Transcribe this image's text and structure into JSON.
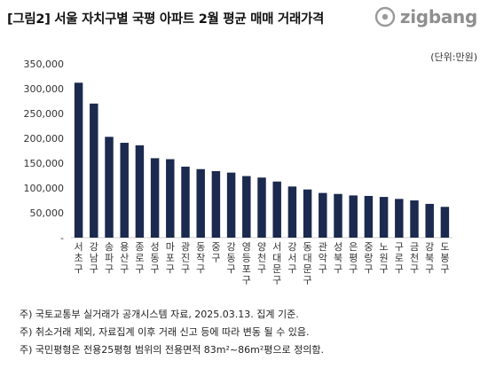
{
  "header": {
    "title": "[그림2] 서울 자치구별 국평 아파트 2월 평균 매매 거래가격",
    "brand": "zigbang",
    "brand_color": "#8f8f8f"
  },
  "unit": "(단위:만원)",
  "notes": [
    "주) 국토교통부 실거래가 공개시스템 자료, 2025.03.13. 집계 기준.",
    "주) 취소거래 제외, 자료집계 이후 거래 신고 등에 따라 변동 될 수 있음.",
    "주) 국민평형은 전용25평형 범위의 전용면적 83m²~86m²평으로 정의함."
  ],
  "chart_data": {
    "type": "bar",
    "categories": [
      "서초구",
      "강남구",
      "송파구",
      "용산구",
      "종로구",
      "성동구",
      "마포구",
      "광진구",
      "동작구",
      "중구",
      "강동구",
      "영등포구",
      "양천구",
      "서대문구",
      "강서구",
      "동대문구",
      "관악구",
      "성북구",
      "은평구",
      "중랑구",
      "노원구",
      "구로구",
      "금천구",
      "강북구",
      "도봉구"
    ],
    "values": [
      312000,
      270000,
      203000,
      191000,
      186000,
      160000,
      158000,
      143000,
      138000,
      134000,
      131000,
      124000,
      121000,
      113000,
      103000,
      97000,
      90000,
      88000,
      85000,
      84000,
      82000,
      78000,
      75000,
      68000,
      62000
    ],
    "ytick_labels": [
      "-",
      "50,000",
      "100,000",
      "150,000",
      "200,000",
      "250,000",
      "300,000",
      "350,000"
    ],
    "ylim": [
      0,
      350000
    ],
    "ystep": 50000,
    "bar_color": "#1b2a4e",
    "grid": false
  }
}
